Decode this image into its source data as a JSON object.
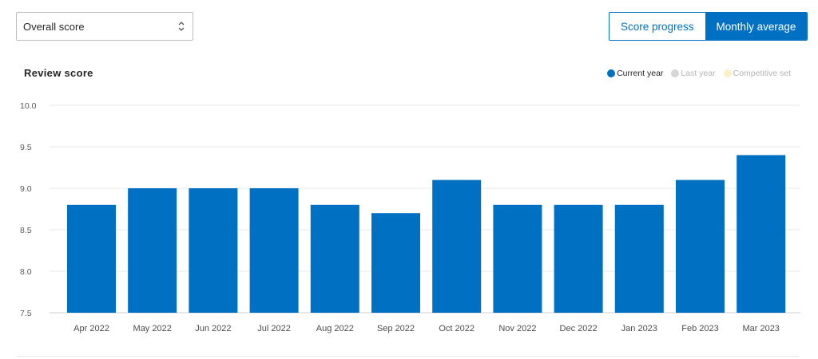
{
  "controls": {
    "select_value": "Overall score",
    "toggle": [
      {
        "label": "Score progress",
        "active": false
      },
      {
        "label": "Monthly average",
        "active": true
      }
    ]
  },
  "colors": {
    "accent": "#0071c2",
    "current_year": "#0071c2",
    "last_year": "#d6d6d6",
    "competitive_set": "#fbefc7"
  },
  "chart_data": {
    "type": "bar",
    "title": "Review score",
    "xlabel": "",
    "ylabel": "",
    "ylim": [
      7.5,
      10.0
    ],
    "yticks": [
      "10.0",
      "9.5",
      "9.0",
      "8.5",
      "8.0",
      "7.5"
    ],
    "categories": [
      "Apr 2022",
      "May 2022",
      "Jun 2022",
      "Jul 2022",
      "Aug 2022",
      "Sep 2022",
      "Oct 2022",
      "Nov 2022",
      "Dec 2022",
      "Jan 2023",
      "Feb 2023",
      "Mar 2023"
    ],
    "series": [
      {
        "name": "Current year",
        "values": [
          8.8,
          9.0,
          9.0,
          9.0,
          8.8,
          8.7,
          9.1,
          8.8,
          8.8,
          8.8,
          9.1,
          9.4
        ]
      }
    ],
    "legend": [
      {
        "label": "Current year",
        "active": true
      },
      {
        "label": "Last year",
        "active": false
      },
      {
        "label": "Competitive set",
        "active": false
      }
    ],
    "legend_position": "top-right",
    "grid": true
  }
}
